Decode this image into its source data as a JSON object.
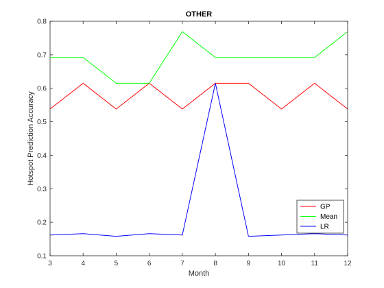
{
  "chart_data": {
    "type": "line",
    "title": "OTHER",
    "xlabel": "Month",
    "ylabel": "Hotspot Prediction Accuracy",
    "x": [
      3,
      4,
      5,
      6,
      7,
      8,
      9,
      10,
      11,
      12
    ],
    "xlim": [
      3,
      12
    ],
    "ylim": [
      0.1,
      0.8
    ],
    "xticks": [
      "3",
      "4",
      "5",
      "6",
      "7",
      "8",
      "9",
      "10",
      "11",
      "12"
    ],
    "yticks": [
      "0.1",
      "0.2",
      "0.3",
      "0.4",
      "0.5",
      "0.6",
      "0.7",
      "0.8"
    ],
    "grid": false,
    "legend_position": "bottom-right",
    "series": [
      {
        "name": "GP",
        "color": "#ff0000",
        "values": [
          0.538,
          0.615,
          0.538,
          0.615,
          0.538,
          0.615,
          0.615,
          0.538,
          0.615,
          0.538
        ]
      },
      {
        "name": "Mean",
        "color": "#00ff00",
        "values": [
          0.692,
          0.692,
          0.615,
          0.615,
          0.769,
          0.692,
          0.692,
          0.692,
          0.692,
          0.769
        ]
      },
      {
        "name": "LR",
        "color": "#0000ff",
        "values": [
          0.162,
          0.166,
          0.158,
          0.166,
          0.162,
          0.615,
          0.158,
          0.162,
          0.166,
          0.162
        ]
      }
    ]
  }
}
